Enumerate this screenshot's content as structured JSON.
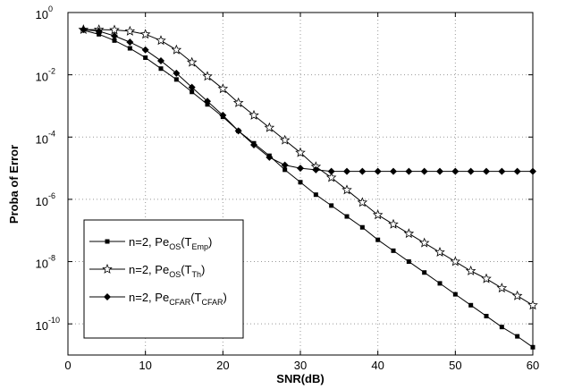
{
  "chart_data": {
    "type": "line",
    "log_y": true,
    "grid": true,
    "legend_position": "lower left",
    "xlabel": "SNR(dB)",
    "ylabel": "Proba of Error",
    "xlim": [
      0,
      60
    ],
    "xticks": [
      0,
      10,
      20,
      30,
      40,
      50,
      60
    ],
    "ylim": [
      1e-11,
      1
    ],
    "yticks": [
      {
        "value": 1,
        "label": "10",
        "exponent": "0"
      },
      {
        "value": 0.01,
        "label": "10",
        "exponent": "-2"
      },
      {
        "value": 0.0001,
        "label": "10",
        "exponent": "-4"
      },
      {
        "value": 1e-06,
        "label": "10",
        "exponent": "-6"
      },
      {
        "value": 1e-08,
        "label": "10",
        "exponent": "-8"
      },
      {
        "value": 1e-10,
        "label": "10",
        "exponent": "-10"
      }
    ],
    "x": [
      2,
      4,
      6,
      8,
      10,
      12,
      14,
      16,
      18,
      20,
      22,
      24,
      26,
      28,
      30,
      32,
      34,
      36,
      38,
      40,
      42,
      44,
      46,
      48,
      50,
      52,
      54,
      56,
      58,
      60
    ],
    "series": [
      {
        "name_parts": [
          {
            "text": "n=2, Pe"
          },
          {
            "text": "OS",
            "sub": true
          },
          {
            "text": "(T"
          },
          {
            "text": "Emp",
            "sub": true
          },
          {
            "text": ")"
          }
        ],
        "color": "#000000",
        "marker": "square",
        "values": [
          0.269,
          0.2,
          0.126,
          0.0708,
          0.0355,
          0.0158,
          0.00708,
          0.00282,
          0.00112,
          0.000447,
          0.000158,
          6.31e-05,
          2.51e-05,
          8.91e-06,
          3.55e-06,
          1.41e-06,
          6.31e-07,
          2.82e-07,
          1.26e-07,
          5.01e-08,
          2.24e-08,
          1e-08,
          4.47e-09,
          2e-09,
          8.91e-10,
          3.98e-10,
          1.78e-10,
          7.94e-11,
          3.98e-11,
          1.78e-11
        ]
      },
      {
        "name_parts": [
          {
            "text": "n=2, Pe"
          },
          {
            "text": "OS",
            "sub": true
          },
          {
            "text": "(T"
          },
          {
            "text": "Th",
            "sub": true
          },
          {
            "text": ")"
          }
        ],
        "color": "#000000",
        "marker": "star",
        "values": [
          0.282,
          0.282,
          0.275,
          0.251,
          0.2,
          0.126,
          0.0631,
          0.0251,
          0.00891,
          0.00355,
          0.00126,
          0.000501,
          0.0002,
          7.94e-05,
          3.16e-05,
          1.12e-05,
          5.01e-06,
          2e-06,
          7.94e-07,
          3.16e-07,
          1.58e-07,
          7.94e-08,
          3.98e-08,
          2e-08,
          1e-08,
          5.01e-09,
          2.82e-09,
          1.41e-09,
          7.94e-10,
          3.98e-10
        ]
      },
      {
        "name_parts": [
          {
            "text": "n=2, Pe"
          },
          {
            "text": "CFAR",
            "sub": true
          },
          {
            "text": "(T"
          },
          {
            "text": "CFAR",
            "sub": true
          },
          {
            "text": ")"
          }
        ],
        "color": "#000000",
        "marker": "diamond",
        "values": [
          0.282,
          0.251,
          0.178,
          0.112,
          0.0631,
          0.0282,
          0.0112,
          0.00398,
          0.00141,
          0.000501,
          0.000158,
          5.62e-05,
          2.24e-05,
          1.26e-05,
          1e-05,
          8.91e-06,
          7.94e-06,
          7.94e-06,
          7.94e-06,
          7.94e-06,
          7.94e-06,
          7.94e-06,
          7.94e-06,
          7.94e-06,
          7.94e-06,
          7.94e-06,
          7.94e-06,
          7.94e-06,
          7.94e-06,
          7.94e-06
        ]
      }
    ]
  }
}
